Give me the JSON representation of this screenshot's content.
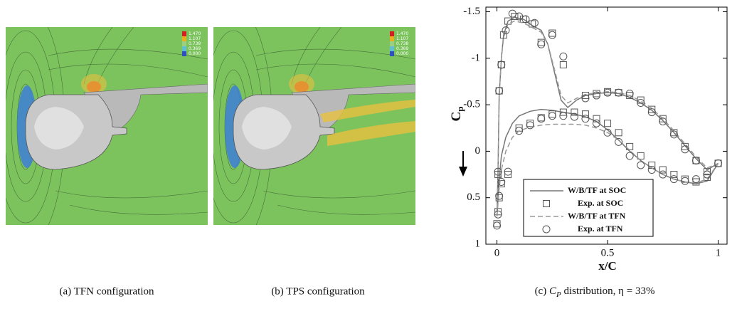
{
  "images": [
    {
      "colorbar": [
        "1.470",
        "1.107",
        "0.738",
        "0.369",
        "0.000"
      ],
      "caption": "(a)  TFN configuration"
    },
    {
      "colorbar": [
        "1.470",
        "1.107",
        "0.738",
        "0.369",
        "0.000"
      ],
      "caption": "(b)  TPS configuration"
    }
  ],
  "chart_data": {
    "type": "line",
    "xlabel": "x/C",
    "ylabel": {
      "base": "C",
      "sub": "p"
    },
    "caption": {
      "label": "(c)",
      "symbol": "C",
      "subscript": "P",
      "text": "distribution, η = 33%"
    },
    "xlim": [
      -0.05,
      1.04
    ],
    "xticks": [
      0,
      0.5,
      1
    ],
    "ylim": [
      -1.55,
      1
    ],
    "yticks": [
      -1.5,
      -1,
      -0.5,
      0,
      0.5,
      1
    ],
    "y_inverted": true,
    "series": [
      {
        "name": "W/B/TF at SOC",
        "type": "line",
        "style": "solid",
        "color": "#777777",
        "x": [
          0,
          0.005,
          0.01,
          0.02,
          0.03,
          0.05,
          0.08,
          0.12,
          0.16,
          0.2,
          0.23,
          0.26,
          0.29,
          0.32,
          0.36,
          0.4,
          0.45,
          0.5,
          0.55,
          0.6,
          0.65,
          0.7,
          0.75,
          0.8,
          0.85,
          0.9,
          0.95,
          1,
          null,
          0,
          0.01,
          0.02,
          0.04,
          0.07,
          0.1,
          0.15,
          0.2,
          0.25,
          0.3,
          0.35,
          0.4,
          0.45,
          0.5,
          0.55,
          0.6,
          0.65,
          0.7,
          0.75,
          0.8,
          0.85,
          0.9,
          0.95,
          1
        ],
        "values": [
          0.7,
          0.2,
          -0.6,
          -1.0,
          -1.25,
          -1.4,
          -1.44,
          -1.42,
          -1.35,
          -1.3,
          -1.15,
          -0.85,
          -0.55,
          -0.47,
          -0.55,
          -0.6,
          -0.62,
          -0.63,
          -0.62,
          -0.58,
          -0.52,
          -0.44,
          -0.33,
          -0.2,
          -0.06,
          0.08,
          0.2,
          0.13,
          null,
          0.7,
          0.3,
          0.05,
          -0.15,
          -0.3,
          -0.38,
          -0.43,
          -0.45,
          -0.44,
          -0.42,
          -0.4,
          -0.37,
          -0.32,
          -0.23,
          -0.12,
          0,
          0.1,
          0.18,
          0.25,
          0.3,
          0.33,
          0.35,
          0.32,
          0.13
        ]
      },
      {
        "name": "Exp. at SOC",
        "type": "scatter",
        "marker": "square",
        "color": "#555555",
        "x": [
          0,
          0.005,
          0.01,
          0.02,
          0.03,
          0.05,
          0.08,
          0.12,
          0.16,
          0.2,
          0.25,
          0.3,
          0.4,
          0.45,
          0.5,
          0.55,
          0.6,
          0.65,
          0.7,
          0.75,
          0.8,
          0.85,
          0.9,
          0.95,
          1,
          0.005,
          0.01,
          0.02,
          0.05,
          0.1,
          0.15,
          0.2,
          0.25,
          0.3,
          0.35,
          0.4,
          0.45,
          0.5,
          0.55,
          0.6,
          0.65,
          0.7,
          0.75,
          0.8,
          0.85,
          0.9,
          0.95
        ],
        "values": [
          0.78,
          0.25,
          -0.65,
          -0.93,
          -1.25,
          -1.4,
          -1.45,
          -1.42,
          -1.37,
          -1.17,
          -1.27,
          -0.93,
          -0.6,
          -0.62,
          -0.64,
          -0.63,
          -0.6,
          -0.55,
          -0.45,
          -0.35,
          -0.2,
          -0.05,
          0.1,
          0.22,
          0.13,
          0.65,
          0.5,
          0.35,
          0.25,
          -0.25,
          -0.3,
          -0.36,
          -0.4,
          -0.42,
          -0.42,
          -0.4,
          -0.35,
          -0.3,
          -0.2,
          -0.05,
          0.05,
          0.15,
          0.2,
          0.25,
          0.3,
          0.33,
          0.28
        ]
      },
      {
        "name": "W/B/TF at TFN",
        "type": "line",
        "style": "dashed",
        "color": "#999999",
        "x": [
          0,
          0.005,
          0.01,
          0.02,
          0.03,
          0.05,
          0.08,
          0.12,
          0.16,
          0.2,
          0.23,
          0.26,
          0.29,
          0.32,
          0.36,
          0.4,
          0.45,
          0.5,
          0.55,
          0.6,
          0.65,
          0.7,
          0.75,
          0.8,
          0.85,
          0.9,
          0.95,
          1,
          null,
          0,
          0.01,
          0.02,
          0.04,
          0.07,
          0.1,
          0.15,
          0.2,
          0.25,
          0.3,
          0.35,
          0.4,
          0.45,
          0.5,
          0.55,
          0.6,
          0.65,
          0.7,
          0.75,
          0.8,
          0.85,
          0.9,
          0.95,
          1
        ],
        "values": [
          0.7,
          0.2,
          -0.6,
          -1.0,
          -1.22,
          -1.37,
          -1.4,
          -1.38,
          -1.33,
          -1.28,
          -1.15,
          -0.88,
          -0.6,
          -0.52,
          -0.57,
          -0.61,
          -0.63,
          -0.64,
          -0.63,
          -0.6,
          -0.54,
          -0.46,
          -0.35,
          -0.22,
          -0.08,
          0.06,
          0.18,
          0.13,
          null,
          0.7,
          0.4,
          0.2,
          0.0,
          -0.15,
          -0.22,
          -0.26,
          -0.28,
          -0.29,
          -0.29,
          -0.29,
          -0.28,
          -0.25,
          -0.2,
          -0.12,
          -0.01,
          0.1,
          0.18,
          0.25,
          0.3,
          0.33,
          0.34,
          0.3,
          0.13
        ]
      },
      {
        "name": "Exp. at TFN",
        "type": "scatter",
        "marker": "circle",
        "color": "#555555",
        "x": [
          0,
          0.005,
          0.01,
          0.02,
          0.04,
          0.07,
          0.1,
          0.13,
          0.17,
          0.2,
          0.25,
          0.3,
          0.4,
          0.45,
          0.5,
          0.55,
          0.6,
          0.65,
          0.7,
          0.75,
          0.8,
          0.85,
          0.9,
          0.95,
          1,
          0.005,
          0.01,
          0.02,
          0.05,
          0.1,
          0.15,
          0.2,
          0.25,
          0.3,
          0.35,
          0.4,
          0.45,
          0.5,
          0.55,
          0.6,
          0.65,
          0.7,
          0.75,
          0.8,
          0.85,
          0.9,
          0.95
        ],
        "values": [
          0.8,
          0.22,
          -0.65,
          -0.93,
          -1.3,
          -1.48,
          -1.45,
          -1.42,
          -1.38,
          -1.15,
          -1.25,
          -1.02,
          -0.57,
          -0.6,
          -0.63,
          -0.63,
          -0.62,
          -0.52,
          -0.42,
          -0.32,
          -0.18,
          -0.02,
          0.1,
          0.25,
          0.13,
          0.68,
          0.48,
          0.33,
          0.22,
          -0.22,
          -0.28,
          -0.35,
          -0.38,
          -0.38,
          -0.37,
          -0.35,
          -0.3,
          -0.2,
          -0.1,
          0.05,
          0.15,
          0.2,
          0.25,
          0.3,
          0.32,
          0.3,
          0.25
        ]
      }
    ]
  }
}
